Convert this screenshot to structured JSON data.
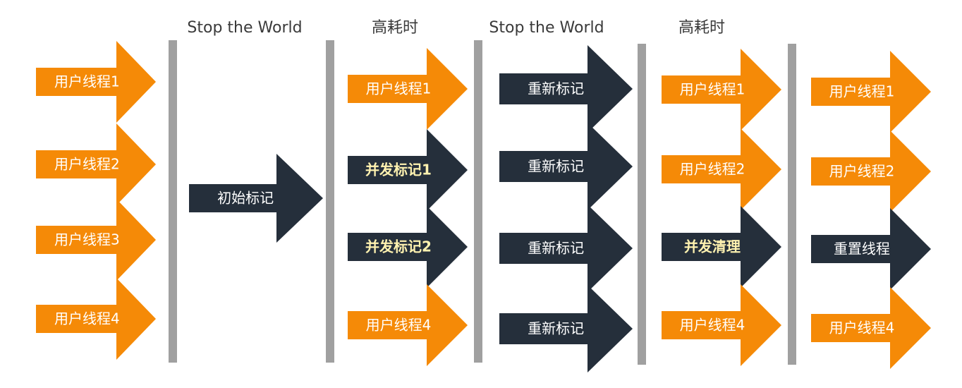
{
  "colors": {
    "orange": "#f58a07",
    "dark": "#252f3b",
    "divider": "#a0a0a0",
    "text_light": "#ffffff",
    "text_highlight": "#fff2b0",
    "text_phase": "#3a3a3a"
  },
  "phase_labels": [
    {
      "id": "stw1",
      "text": "Stop the World"
    },
    {
      "id": "slow1",
      "text": "高耗时"
    },
    {
      "id": "stw2",
      "text": "Stop the World"
    },
    {
      "id": "slow2",
      "text": "高耗时"
    }
  ],
  "columns": [
    {
      "id": "app-running",
      "arrows": [
        {
          "label": "用户线程1",
          "color": "orange"
        },
        {
          "label": "用户线程2",
          "color": "orange"
        },
        {
          "label": "用户线程3",
          "color": "orange"
        },
        {
          "label": "用户线程4",
          "color": "orange"
        }
      ]
    },
    {
      "id": "initial-mark",
      "arrows": [
        {
          "label": "初始标记",
          "color": "dark"
        }
      ]
    },
    {
      "id": "concurrent-mark",
      "arrows": [
        {
          "label": "用户线程1",
          "color": "orange"
        },
        {
          "label": "并发标记1",
          "color": "dark",
          "highlight": true
        },
        {
          "label": "并发标记2",
          "color": "dark",
          "highlight": true
        },
        {
          "label": "用户线程4",
          "color": "orange"
        }
      ]
    },
    {
      "id": "remark",
      "arrows": [
        {
          "label": "重新标记",
          "color": "dark"
        },
        {
          "label": "重新标记",
          "color": "dark"
        },
        {
          "label": "重新标记",
          "color": "dark"
        },
        {
          "label": "重新标记",
          "color": "dark"
        }
      ]
    },
    {
      "id": "concurrent-sweep",
      "arrows": [
        {
          "label": "用户线程1",
          "color": "orange"
        },
        {
          "label": "用户线程2",
          "color": "orange"
        },
        {
          "label": "并发清理",
          "color": "dark",
          "highlight": true
        },
        {
          "label": "用户线程4",
          "color": "orange"
        }
      ]
    },
    {
      "id": "reset",
      "arrows": [
        {
          "label": "用户线程1",
          "color": "orange"
        },
        {
          "label": "用户线程2",
          "color": "orange"
        },
        {
          "label": "重置线程",
          "color": "dark"
        },
        {
          "label": "用户线程4",
          "color": "orange"
        }
      ]
    }
  ]
}
